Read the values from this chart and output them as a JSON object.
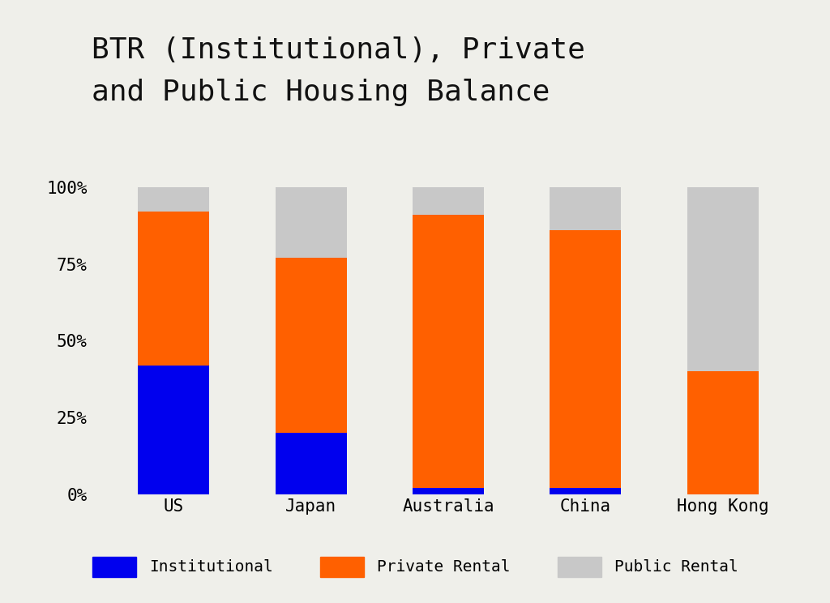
{
  "categories": [
    "US",
    "Japan",
    "Australia",
    "China",
    "Hong Kong"
  ],
  "institutional": [
    42,
    20,
    2,
    2,
    0
  ],
  "private_rental": [
    50,
    57,
    89,
    84,
    40
  ],
  "public_rental": [
    8,
    23,
    9,
    14,
    60
  ],
  "colors": {
    "institutional": "#0000EE",
    "private_rental": "#FF6000",
    "public_rental": "#C8C8C8"
  },
  "title_line1": "BTR (Institutional), Private",
  "title_line2": "and Public Housing Balance",
  "title_fontsize": 26,
  "tick_fontsize": 15,
  "legend_fontsize": 14,
  "background_color": "#EFEFEA",
  "bar_width": 0.52,
  "ylim": [
    0,
    102
  ],
  "yticks": [
    0,
    25,
    50,
    75,
    100
  ],
  "ytick_labels": [
    "0%",
    "25%",
    "50%",
    "75%",
    "100%"
  ]
}
